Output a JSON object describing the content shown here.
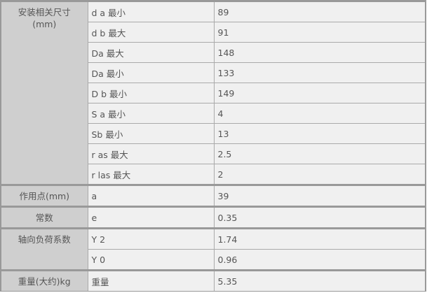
{
  "groups": [
    {
      "label": "安装相关尺寸\n(mm)",
      "rows": [
        {
          "name": "d a 最小",
          "value": "89"
        },
        {
          "name": "d b 最大",
          "value": "91"
        },
        {
          "name": "Da 最大",
          "value": "148"
        },
        {
          "name": "Da 最小",
          "value": "133"
        },
        {
          "name": "D b 最小",
          "value": "149"
        },
        {
          "name": "S a 最小",
          "value": "4"
        },
        {
          "name": "Sb 最小",
          "value": "13"
        },
        {
          "name": "r as 最大",
          "value": "2.5"
        },
        {
          "name": "r las 最大",
          "value": "2"
        }
      ]
    },
    {
      "label": "作用点(mm)",
      "rows": [
        {
          "name": "a",
          "value": "39"
        }
      ]
    },
    {
      "label": "常数",
      "rows": [
        {
          "name": "e",
          "value": "0.35"
        }
      ]
    },
    {
      "label": "轴向负荷系数",
      "rows": [
        {
          "name": "Y 2",
          "value": "1.74"
        },
        {
          "name": "Y 0",
          "value": "0.96"
        }
      ]
    },
    {
      "label": "重量(大约)kg",
      "rows": [
        {
          "name": "重量",
          "value": "5.35"
        }
      ]
    }
  ]
}
